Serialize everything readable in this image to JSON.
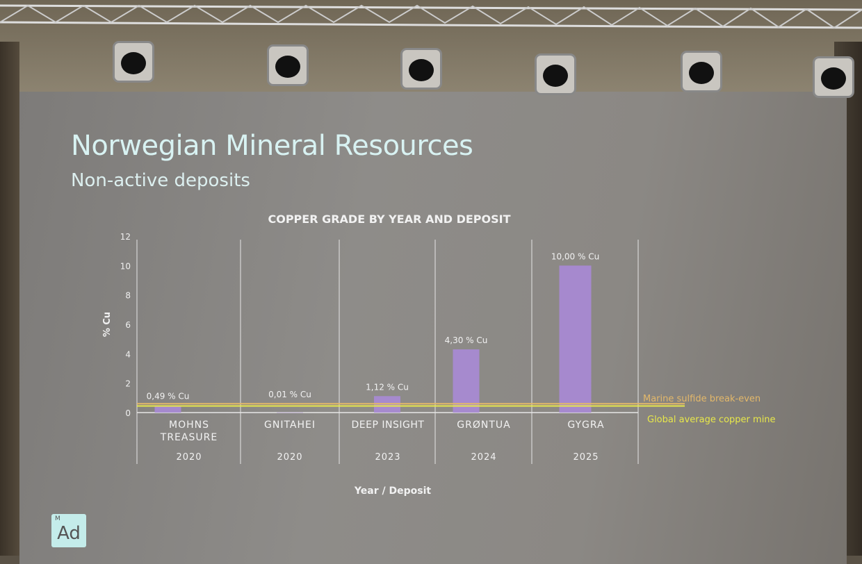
{
  "slide": {
    "title": "Norwegian Mineral Resources",
    "subtitle": "Non-active deposits",
    "logo": "Ad",
    "logo_superscript": "M"
  },
  "chart_data": {
    "type": "bar",
    "title": "COPPER GRADE BY YEAR AND DEPOSIT",
    "xlabel": "Year / Deposit",
    "ylabel": "% Cu",
    "ylim": [
      0,
      12
    ],
    "yticks": [
      0,
      2,
      4,
      6,
      8,
      10,
      12
    ],
    "categories": [
      {
        "name": "MOHNS TREASURE",
        "year": "2020"
      },
      {
        "name": "GNITAHEI",
        "year": "2020"
      },
      {
        "name": "DEEP INSIGHT",
        "year": "2023"
      },
      {
        "name": "GRØNTUA",
        "year": "2024"
      },
      {
        "name": "GYGRA",
        "year": "2025"
      }
    ],
    "values": [
      0.49,
      0.01,
      1.12,
      4.3,
      10.0
    ],
    "data_labels": [
      "0,49 % Cu",
      "0,01 % Cu",
      "1,12 % Cu",
      "4,30 % Cu",
      "10,00 % Cu"
    ],
    "reference_lines": [
      {
        "label": "Marine sulfide break-even",
        "value": 0.6,
        "color": "#e3b86a"
      },
      {
        "label": "Global average copper mine",
        "value": 0.45,
        "color": "#e8e84a"
      }
    ],
    "bar_color": "#a98ad6",
    "grid": true
  }
}
